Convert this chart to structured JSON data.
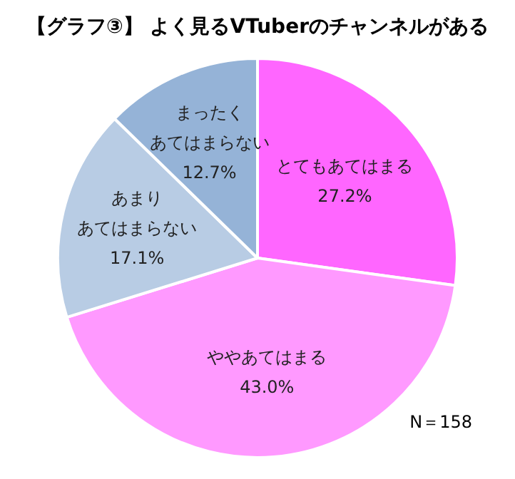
{
  "chart_data": {
    "type": "pie",
    "title": "【グラフ③】 よく見るVTuberのチャンネルがある",
    "categories": [
      "とてもあてはまる",
      "ややあてはまる",
      "あまりあてはまらない",
      "まったくあてはまらない"
    ],
    "values": [
      27.2,
      43.0,
      17.1,
      12.7
    ],
    "value_labels": [
      "27.2%",
      "43.0%",
      "17.1%",
      "12.7%"
    ],
    "colors": [
      "#ff66ff",
      "#ff99ff",
      "#b8cce4",
      "#95b3d7"
    ],
    "legend": false,
    "annotations": [
      "N＝158"
    ]
  }
}
